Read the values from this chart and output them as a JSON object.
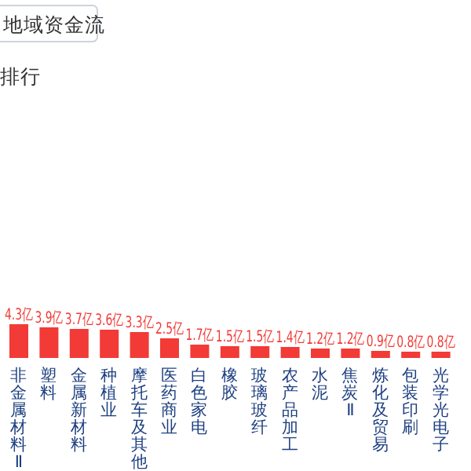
{
  "chart_data": {
    "type": "bar",
    "title": "地域资金流",
    "subtitle": "排行",
    "categories": [
      "非金属材料Ⅱ",
      "塑料",
      "金属新材料",
      "种植业",
      "摩托车及其他",
      "医药商业",
      "白色家电",
      "橡胶",
      "玻璃玻纤",
      "农产品加工",
      "水泥",
      "焦炭Ⅱ",
      "炼化及贸易",
      "包装印刷",
      "光学光电子"
    ],
    "values": [
      4.3,
      3.9,
      3.7,
      3.6,
      3.3,
      2.5,
      1.7,
      1.5,
      1.5,
      1.4,
      1.2,
      1.2,
      0.9,
      0.8,
      0.8
    ],
    "value_labels": [
      "4.3亿",
      "3.9亿",
      "3.7亿",
      "3.6亿",
      "3.3亿",
      "2.5亿",
      "1.7亿",
      "1.5亿",
      "1.5亿",
      "1.4亿",
      "1.2亿",
      "1.2亿",
      "0.9亿",
      "0.8亿",
      "0.8亿"
    ],
    "color": "#f23a36"
  }
}
